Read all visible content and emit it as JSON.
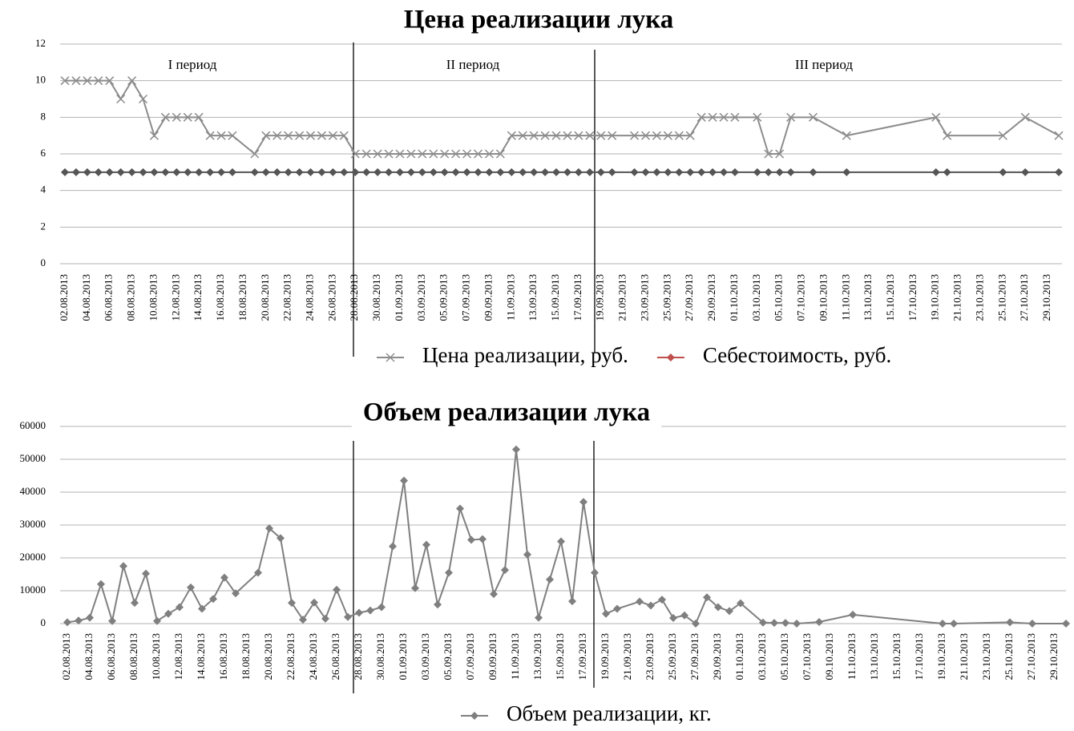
{
  "chart_data": [
    {
      "type": "line",
      "title": "Цена реализации лука",
      "x": [
        "02.08.2013",
        "03.08.2013",
        "04.08.2013",
        "05.08.2013",
        "06.08.2013",
        "07.08.2013",
        "08.08.2013",
        "09.08.2013",
        "10.08.2013",
        "11.08.2013",
        "12.08.2013",
        "13.08.2013",
        "14.08.2013",
        "15.08.2013",
        "16.08.2013",
        "17.08.2013",
        "19.08.2013",
        "20.08.2013",
        "21.08.2013",
        "22.08.2013",
        "23.08.2013",
        "24.08.2013",
        "25.08.2013",
        "26.08.2013",
        "27.08.2013",
        "28.08.2013",
        "29.08.2013",
        "30.08.2013",
        "31.08.2013",
        "01.09.2013",
        "02.09.2013",
        "03.09.2013",
        "04.09.2013",
        "05.09.2013",
        "06.09.2013",
        "07.09.2013",
        "08.09.2013",
        "09.09.2013",
        "10.09.2013",
        "11.09.2013",
        "12.09.2013",
        "13.09.2013",
        "14.09.2013",
        "15.09.2013",
        "16.09.2013",
        "17.09.2013",
        "18.09.2013",
        "19.09.2013",
        "20.09.2013",
        "22.09.2013",
        "23.09.2013",
        "24.09.2013",
        "25.09.2013",
        "26.09.2013",
        "27.09.2013",
        "28.09.2013",
        "29.09.2013",
        "30.09.2013",
        "01.10.2013",
        "03.10.2013",
        "04.10.2013",
        "05.10.2013",
        "06.10.2013",
        "08.10.2013",
        "11.10.2013",
        "19.10.2013",
        "20.10.2013",
        "25.10.2013",
        "27.10.2013",
        "30.10.2013"
      ],
      "xticks": [
        "02.08.2013",
        "04.08.2013",
        "06.08.2013",
        "08.08.2013",
        "10.08.2013",
        "12.08.2013",
        "14.08.2013",
        "16.08.2013",
        "18.08.2013",
        "20.08.2013",
        "22.08.2013",
        "24.08.2013",
        "26.08.2013",
        "28.08.2013",
        "30.08.2013",
        "01.09.2013",
        "03.09.2013",
        "05.09.2013",
        "07.09.2013",
        "09.09.2013",
        "11.09.2013",
        "13.09.2013",
        "15.09.2013",
        "17.09.2013",
        "19.09.2013",
        "21.09.2013",
        "23.09.2013",
        "25.09.2013",
        "27.09.2013",
        "29.09.2013",
        "01.10.2013",
        "03.10.2013",
        "05.10.2013",
        "07.10.2013",
        "09.10.2013",
        "11.10.2013",
        "13.10.2013",
        "15.10.2013",
        "17.10.2013",
        "19.10.2013",
        "21.10.2013",
        "23.10.2013",
        "25.10.2013",
        "27.10.2013",
        "29.10.2013"
      ],
      "xlim": [
        "02.08.2013",
        "30.10.2013"
      ],
      "ylim": [
        0,
        12
      ],
      "yticks": [
        0,
        2,
        4,
        6,
        8,
        10,
        12
      ],
      "grid": true,
      "legend": "bottom",
      "annotations": [
        "I период",
        "II период",
        "III период"
      ],
      "series": [
        {
          "name": "Цена реализации, руб.",
          "color": "#8c8c8c",
          "marker": "x",
          "values": [
            10,
            10,
            10,
            10,
            10,
            9,
            10,
            9,
            7,
            8,
            8,
            8,
            8,
            7,
            7,
            7,
            6,
            7,
            7,
            7,
            7,
            7,
            7,
            7,
            7,
            6,
            6,
            6,
            6,
            6,
            6,
            6,
            6,
            6,
            6,
            6,
            6,
            6,
            6,
            7,
            7,
            7,
            7,
            7,
            7,
            7,
            7,
            7,
            7,
            7,
            7,
            7,
            7,
            7,
            7,
            8,
            8,
            8,
            8,
            8,
            6,
            6,
            8,
            8,
            7,
            8,
            7,
            7,
            8,
            7
          ]
        },
        {
          "name": "Себестоимость, руб.",
          "color": "#555555",
          "legend_color": "#c0504d",
          "marker": "diamond",
          "values": [
            5,
            5,
            5,
            5,
            5,
            5,
            5,
            5,
            5,
            5,
            5,
            5,
            5,
            5,
            5,
            5,
            5,
            5,
            5,
            5,
            5,
            5,
            5,
            5,
            5,
            5,
            5,
            5,
            5,
            5,
            5,
            5,
            5,
            5,
            5,
            5,
            5,
            5,
            5,
            5,
            5,
            5,
            5,
            5,
            5,
            5,
            5,
            5,
            5,
            5,
            5,
            5,
            5,
            5,
            5,
            5,
            5,
            5,
            5,
            5,
            5,
            5,
            5,
            5,
            5,
            5,
            5,
            5,
            5,
            5
          ]
        }
      ]
    },
    {
      "type": "line",
      "title": "Объем реализации лука",
      "x": [
        "02.08.2013",
        "03.08.2013",
        "04.08.2013",
        "05.08.2013",
        "06.08.2013",
        "07.08.2013",
        "08.08.2013",
        "09.08.2013",
        "10.08.2013",
        "11.08.2013",
        "12.08.2013",
        "13.08.2013",
        "14.08.2013",
        "15.08.2013",
        "16.08.2013",
        "17.08.2013",
        "19.08.2013",
        "20.08.2013",
        "21.08.2013",
        "22.08.2013",
        "23.08.2013",
        "24.08.2013",
        "25.08.2013",
        "26.08.2013",
        "27.08.2013",
        "28.08.2013",
        "29.08.2013",
        "30.08.2013",
        "31.08.2013",
        "01.09.2013",
        "02.09.2013",
        "03.09.2013",
        "04.09.2013",
        "05.09.2013",
        "06.09.2013",
        "07.09.2013",
        "08.09.2013",
        "09.09.2013",
        "10.09.2013",
        "11.09.2013",
        "12.09.2013",
        "13.09.2013",
        "14.09.2013",
        "15.09.2013",
        "16.09.2013",
        "17.09.2013",
        "18.09.2013",
        "19.09.2013",
        "20.09.2013",
        "22.09.2013",
        "23.09.2013",
        "24.09.2013",
        "25.09.2013",
        "26.09.2013",
        "27.09.2013",
        "28.09.2013",
        "29.09.2013",
        "30.09.2013",
        "01.10.2013",
        "03.10.2013",
        "04.10.2013",
        "05.10.2013",
        "06.10.2013",
        "08.10.2013",
        "11.10.2013",
        "19.10.2013",
        "20.10.2013",
        "25.10.2013",
        "27.10.2013",
        "30.10.2013"
      ],
      "xticks": [
        "02.08.2013",
        "04.08.2013",
        "06.08.2013",
        "08.08.2013",
        "10.08.2013",
        "12.08.2013",
        "14.08.2013",
        "16.08.2013",
        "18.08.2013",
        "20.08.2013",
        "22.08.2013",
        "24.08.2013",
        "26.08.2013",
        "28.08.2013",
        "30.08.2013",
        "01.09.2013",
        "03.09.2013",
        "05.09.2013",
        "07.09.2013",
        "09.09.2013",
        "11.09.2013",
        "13.09.2013",
        "15.09.2013",
        "17.09.2013",
        "19.09.2013",
        "21.09.2013",
        "23.09.2013",
        "25.09.2013",
        "27.09.2013",
        "29.09.2013",
        "01.10.2013",
        "03.10.2013",
        "05.10.2013",
        "07.10.2013",
        "09.10.2013",
        "11.10.2013",
        "13.10.2013",
        "15.10.2013",
        "17.10.2013",
        "19.10.2013",
        "21.10.2013",
        "23.10.2013",
        "25.10.2013",
        "27.10.2013",
        "29.10.2013"
      ],
      "xlim": [
        "02.08.2013",
        "30.10.2013"
      ],
      "ylim": [
        0,
        60000
      ],
      "yticks": [
        0,
        10000,
        20000,
        30000,
        40000,
        50000,
        60000
      ],
      "grid": true,
      "legend": "bottom",
      "series": [
        {
          "name": "Объем реализации, кг.",
          "color": "#7f7f7f",
          "marker": "diamond",
          "values": [
            400,
            900,
            1800,
            12000,
            800,
            17500,
            6300,
            15200,
            800,
            3000,
            5000,
            11000,
            4500,
            7500,
            14000,
            9200,
            15500,
            29000,
            26000,
            6300,
            1200,
            6400,
            1500,
            10300,
            2000,
            3300,
            4000,
            5000,
            23500,
            43500,
            10800,
            24000,
            5800,
            15500,
            35000,
            25500,
            25700,
            9000,
            16300,
            53000,
            21000,
            1800,
            13400,
            25000,
            6800,
            37000,
            15500,
            3000,
            4500,
            6700,
            5500,
            7300,
            1700,
            2500,
            0,
            8000,
            5000,
            3800,
            6200,
            300,
            200,
            200,
            0,
            500,
            2700,
            0,
            0,
            400,
            0,
            0
          ]
        }
      ]
    }
  ]
}
